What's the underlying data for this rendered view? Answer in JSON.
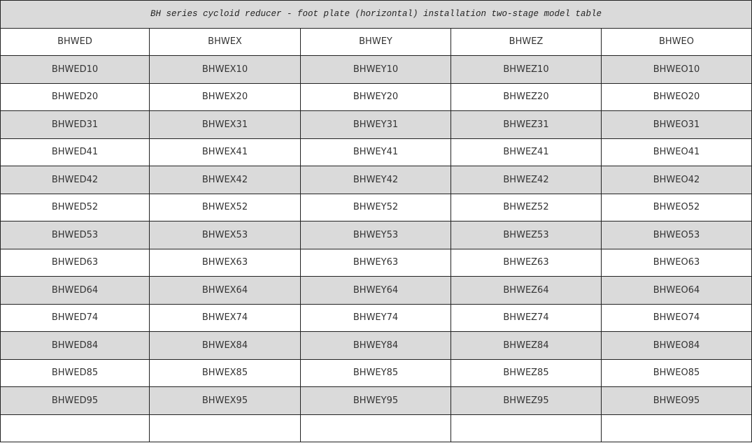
{
  "table": {
    "title": "BH series cycloid reducer - foot plate (horizontal) installation two-stage model table",
    "headers": [
      "BHWED",
      "BHWEX",
      "BHWEY",
      "BHWEZ",
      "BHWEO"
    ],
    "rows": [
      [
        "BHWED10",
        "BHWEX10",
        "BHWEY10",
        "BHWEZ10",
        "BHWEO10"
      ],
      [
        "BHWED20",
        "BHWEX20",
        "BHWEY20",
        "BHWEZ20",
        "BHWEO20"
      ],
      [
        "BHWED31",
        "BHWEX31",
        "BHWEY31",
        "BHWEZ31",
        "BHWEO31"
      ],
      [
        "BHWED41",
        "BHWEX41",
        "BHWEY41",
        "BHWEZ41",
        "BHWEO41"
      ],
      [
        "BHWED42",
        "BHWEX42",
        "BHWEY42",
        "BHWEZ42",
        "BHWEO42"
      ],
      [
        "BHWED52",
        "BHWEX52",
        "BHWEY52",
        "BHWEZ52",
        "BHWEO52"
      ],
      [
        "BHWED53",
        "BHWEX53",
        "BHWEY53",
        "BHWEZ53",
        "BHWEO53"
      ],
      [
        "BHWED63",
        "BHWEX63",
        "BHWEY63",
        "BHWEZ63",
        "BHWEO63"
      ],
      [
        "BHWED64",
        "BHWEX64",
        "BHWEY64",
        "BHWEZ64",
        "BHWEO64"
      ],
      [
        "BHWED74",
        "BHWEX74",
        "BHWEY74",
        "BHWEZ74",
        "BHWEO74"
      ],
      [
        "BHWED84",
        "BHWEX84",
        "BHWEY84",
        "BHWEZ84",
        "BHWEO84"
      ],
      [
        "BHWED85",
        "BHWEX85",
        "BHWEY85",
        "BHWEZ85",
        "BHWEO85"
      ],
      [
        "BHWED95",
        "BHWEX95",
        "BHWEY95",
        "BHWEZ95",
        "BHWEO95"
      ],
      [
        "",
        "",
        "",
        "",
        ""
      ]
    ],
    "stripe_color": "#dadada"
  }
}
